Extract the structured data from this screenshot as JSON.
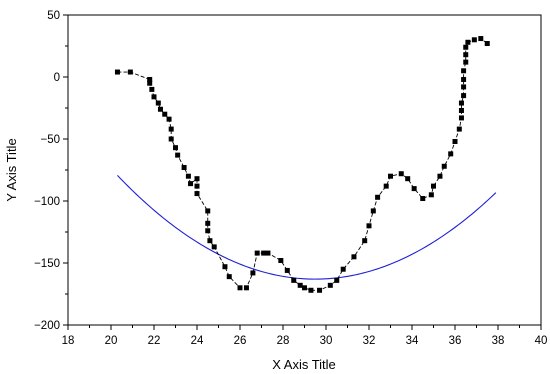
{
  "chart_data": {
    "type": "scatter",
    "title": "",
    "xlabel": "X Axis Title",
    "ylabel": "Y Axis Title",
    "xlim": [
      18,
      40
    ],
    "ylim": [
      -200,
      50
    ],
    "grid": false,
    "legend": "none",
    "x_ticks": [
      "18",
      "20",
      "22",
      "24",
      "26",
      "28",
      "30",
      "32",
      "34",
      "36",
      "38",
      "40"
    ],
    "y_ticks": [
      "50",
      "0",
      "-50",
      "-100",
      "-150",
      "-200"
    ],
    "series": [
      {
        "kind": "scatter-dashed-line",
        "color": "#000000",
        "points": [
          [
            20.3,
            4
          ],
          [
            20.9,
            4
          ],
          [
            21.8,
            -2
          ],
          [
            21.8,
            -5
          ],
          [
            21.9,
            -10
          ],
          [
            22.0,
            -16
          ],
          [
            22.2,
            -21
          ],
          [
            22.3,
            -26
          ],
          [
            22.5,
            -30
          ],
          [
            22.7,
            -34
          ],
          [
            22.8,
            -42
          ],
          [
            22.8,
            -50
          ],
          [
            23.0,
            -57
          ],
          [
            23.1,
            -63
          ],
          [
            23.4,
            -73
          ],
          [
            23.6,
            -80
          ],
          [
            23.7,
            -86
          ],
          [
            24.0,
            -82
          ],
          [
            24.0,
            -88
          ],
          [
            24.0,
            -94
          ],
          [
            24.5,
            -108
          ],
          [
            24.5,
            -118
          ],
          [
            24.5,
            -124
          ],
          [
            24.6,
            -132
          ],
          [
            24.8,
            -137
          ],
          [
            25.3,
            -153
          ],
          [
            25.5,
            -161
          ],
          [
            26.0,
            -170
          ],
          [
            26.3,
            -170
          ],
          [
            26.6,
            -158
          ],
          [
            26.8,
            -142
          ],
          [
            27.1,
            -142
          ],
          [
            27.3,
            -142
          ],
          [
            27.9,
            -148
          ],
          [
            28.2,
            -156
          ],
          [
            28.5,
            -164
          ],
          [
            28.8,
            -168
          ],
          [
            29.0,
            -170
          ],
          [
            29.3,
            -172
          ],
          [
            29.7,
            -172
          ],
          [
            30.2,
            -168
          ],
          [
            30.5,
            -164
          ],
          [
            30.8,
            -155
          ],
          [
            31.3,
            -145
          ],
          [
            31.8,
            -132
          ],
          [
            32.0,
            -120
          ],
          [
            32.2,
            -108
          ],
          [
            32.4,
            -97
          ],
          [
            32.8,
            -88
          ],
          [
            33.0,
            -80
          ],
          [
            33.5,
            -78
          ],
          [
            33.8,
            -82
          ],
          [
            34.1,
            -90
          ],
          [
            34.5,
            -98
          ],
          [
            34.9,
            -95
          ],
          [
            35.0,
            -88
          ],
          [
            35.3,
            -80
          ],
          [
            35.5,
            -72
          ],
          [
            35.8,
            -62
          ],
          [
            36.0,
            -52
          ],
          [
            36.2,
            -42
          ],
          [
            36.3,
            -33
          ],
          [
            36.3,
            -27
          ],
          [
            36.3,
            -21
          ],
          [
            36.4,
            -15
          ],
          [
            36.4,
            -8
          ],
          [
            36.4,
            -2
          ],
          [
            36.4,
            5
          ],
          [
            36.5,
            12
          ],
          [
            36.5,
            18
          ],
          [
            36.5,
            24
          ],
          [
            36.6,
            28
          ],
          [
            36.9,
            30
          ],
          [
            37.2,
            31
          ],
          [
            37.5,
            27
          ]
        ]
      },
      {
        "kind": "fit-curve",
        "color": "#1f1fd6",
        "equation": {
          "a": 0.988,
          "vertex_x": 29.5,
          "vertex_y": -163
        },
        "x_range": [
          20.3,
          37.9
        ]
      }
    ]
  }
}
